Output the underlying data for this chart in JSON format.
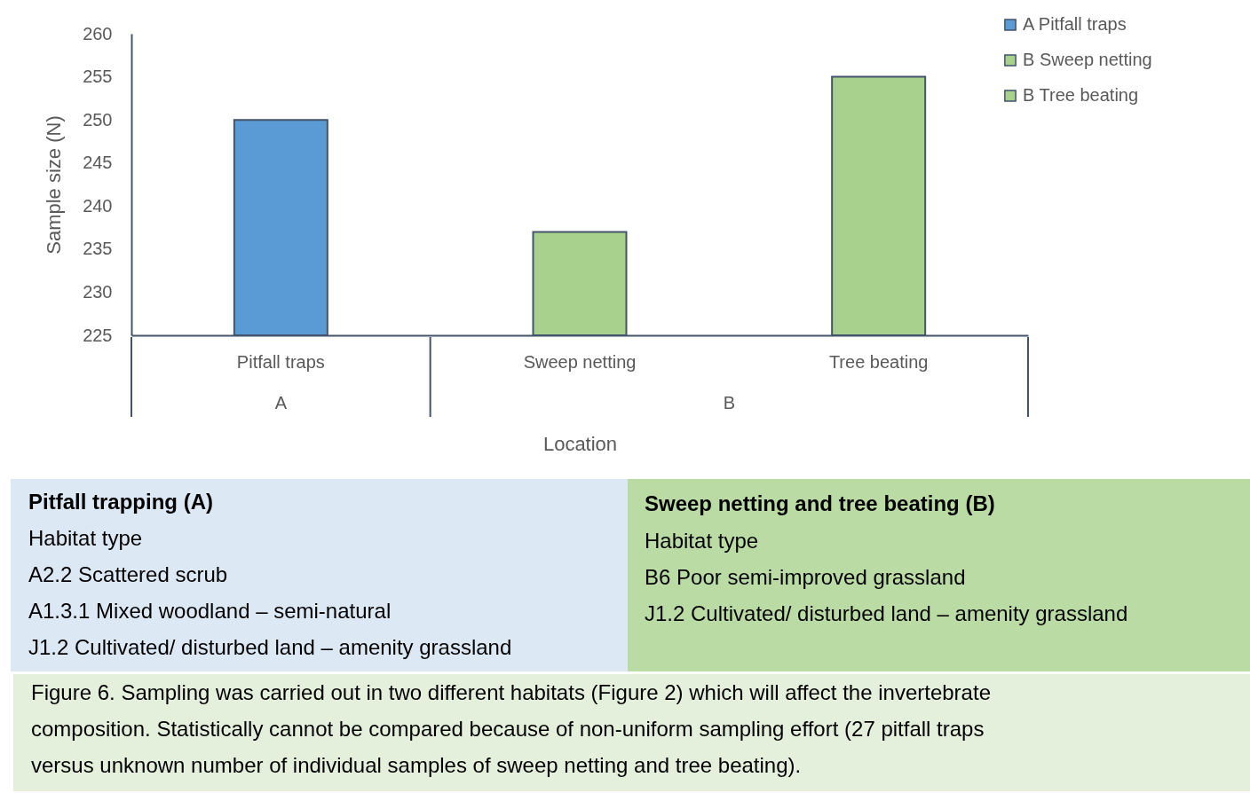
{
  "chart_data": {
    "type": "bar",
    "xlabel": "Location",
    "ylabel": "Sample size (N)",
    "categories": [
      "Pitfall traps",
      "Sweep netting",
      "Tree beating"
    ],
    "series": [
      {
        "name": "A Pitfall traps",
        "color": "#5b9bd5",
        "values": [
          250,
          null,
          null
        ]
      },
      {
        "name": "B Sweep netting",
        "color": "#a9d18e",
        "values": [
          null,
          237,
          null
        ]
      },
      {
        "name": "B Tree beating",
        "color": "#a9d18e",
        "values": [
          null,
          null,
          255
        ]
      }
    ],
    "ylim": [
      225,
      260
    ],
    "yticks": [
      225,
      230,
      235,
      240,
      245,
      250,
      255,
      260
    ],
    "grid": false,
    "legend": "top right",
    "annotations": [
      "A",
      "B",
      "Pitfall trapping (A)",
      "Habitat type",
      "A2.2 Scattered scrub",
      "A1.3.1 Mixed woodland – semi-natural",
      "J1.2 Cultivated/ disturbed land – amenity grassland",
      "Sweep netting and tree beating (B)",
      "Habitat type",
      "B6 Poor semi-improved grassland",
      "J1.2 Cultivated/ disturbed land – amenity grassland",
      "Figure 6. Sampling was carried out in two different habitats (Figure 2) which will affect the invertebrate composition. Statistically cannot be compared because of non-uniform sampling effort (27 pitfall traps versus unknown number of individual samples of sweep netting and tree beating)."
    ]
  }
}
